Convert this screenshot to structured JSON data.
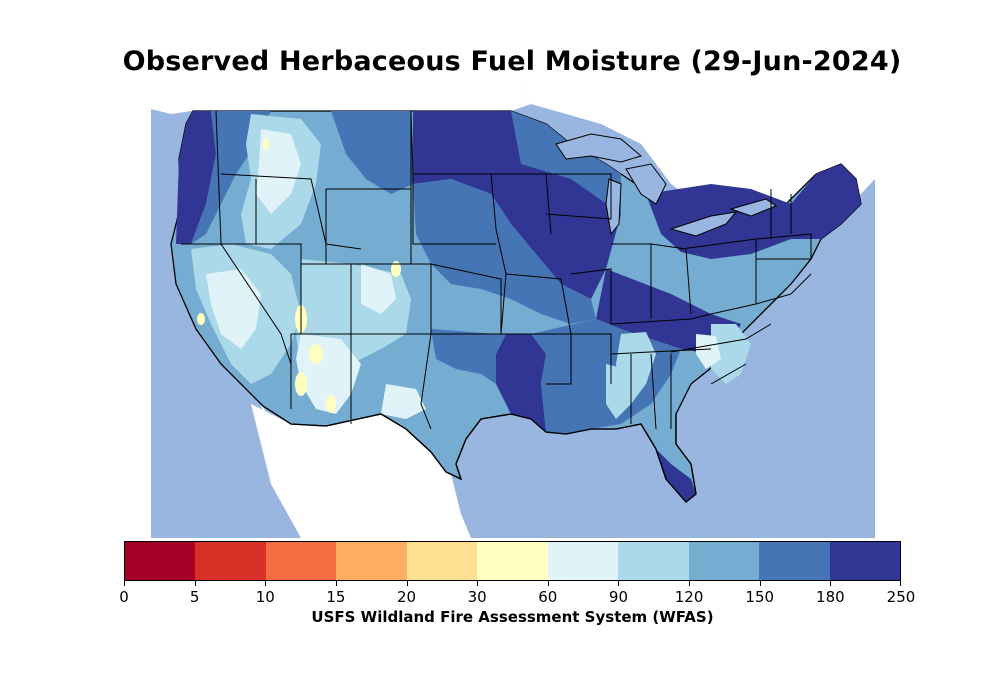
{
  "title": "Observed Herbaceous Fuel Moisture (29-Jun-2024)",
  "colorbar": {
    "label": "USFS Wildland Fire Assessment System (WFAS)",
    "ticks": [
      "0",
      "5",
      "10",
      "15",
      "20",
      "30",
      "60",
      "90",
      "120",
      "150",
      "180",
      "250"
    ],
    "colors": [
      "#a50026",
      "#d73027",
      "#f46d43",
      "#fdae61",
      "#fee090",
      "#ffffbf",
      "#e0f3f8",
      "#abd9e9",
      "#74add1",
      "#4575b4",
      "#313695"
    ]
  },
  "map": {
    "water_color": "#99b6e0",
    "land_outside_color": "#ffffff",
    "border_color": "#000000"
  }
}
